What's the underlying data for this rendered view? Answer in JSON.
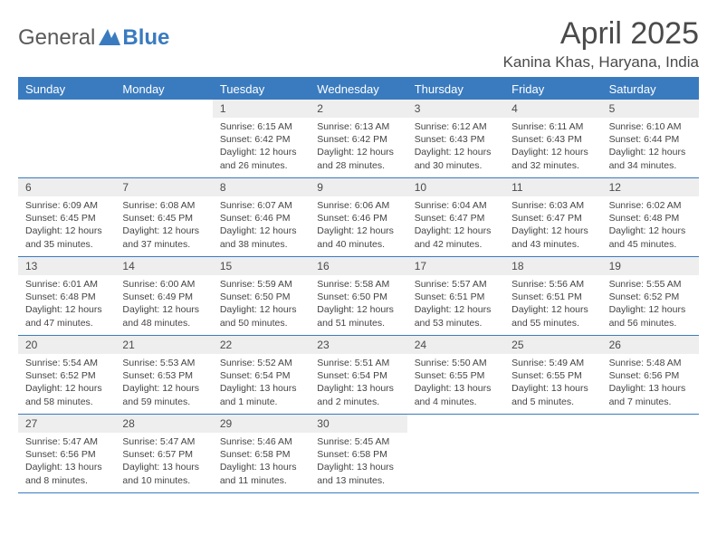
{
  "logo": {
    "general": "General",
    "blue": "Blue"
  },
  "title": "April 2025",
  "location": "Kanina Khas, Haryana, India",
  "header_bg": "#3a7bbf",
  "header_fg": "#ffffff",
  "daynum_bg": "#eeeeee",
  "text_color": "#444444",
  "border_color": "#3a7bbf",
  "day_names": [
    "Sunday",
    "Monday",
    "Tuesday",
    "Wednesday",
    "Thursday",
    "Friday",
    "Saturday"
  ],
  "weeks": [
    [
      null,
      null,
      {
        "n": "1",
        "sr": "6:15 AM",
        "ss": "6:42 PM",
        "dl": "12 hours and 26 minutes."
      },
      {
        "n": "2",
        "sr": "6:13 AM",
        "ss": "6:42 PM",
        "dl": "12 hours and 28 minutes."
      },
      {
        "n": "3",
        "sr": "6:12 AM",
        "ss": "6:43 PM",
        "dl": "12 hours and 30 minutes."
      },
      {
        "n": "4",
        "sr": "6:11 AM",
        "ss": "6:43 PM",
        "dl": "12 hours and 32 minutes."
      },
      {
        "n": "5",
        "sr": "6:10 AM",
        "ss": "6:44 PM",
        "dl": "12 hours and 34 minutes."
      }
    ],
    [
      {
        "n": "6",
        "sr": "6:09 AM",
        "ss": "6:45 PM",
        "dl": "12 hours and 35 minutes."
      },
      {
        "n": "7",
        "sr": "6:08 AM",
        "ss": "6:45 PM",
        "dl": "12 hours and 37 minutes."
      },
      {
        "n": "8",
        "sr": "6:07 AM",
        "ss": "6:46 PM",
        "dl": "12 hours and 38 minutes."
      },
      {
        "n": "9",
        "sr": "6:06 AM",
        "ss": "6:46 PM",
        "dl": "12 hours and 40 minutes."
      },
      {
        "n": "10",
        "sr": "6:04 AM",
        "ss": "6:47 PM",
        "dl": "12 hours and 42 minutes."
      },
      {
        "n": "11",
        "sr": "6:03 AM",
        "ss": "6:47 PM",
        "dl": "12 hours and 43 minutes."
      },
      {
        "n": "12",
        "sr": "6:02 AM",
        "ss": "6:48 PM",
        "dl": "12 hours and 45 minutes."
      }
    ],
    [
      {
        "n": "13",
        "sr": "6:01 AM",
        "ss": "6:48 PM",
        "dl": "12 hours and 47 minutes."
      },
      {
        "n": "14",
        "sr": "6:00 AM",
        "ss": "6:49 PM",
        "dl": "12 hours and 48 minutes."
      },
      {
        "n": "15",
        "sr": "5:59 AM",
        "ss": "6:50 PM",
        "dl": "12 hours and 50 minutes."
      },
      {
        "n": "16",
        "sr": "5:58 AM",
        "ss": "6:50 PM",
        "dl": "12 hours and 51 minutes."
      },
      {
        "n": "17",
        "sr": "5:57 AM",
        "ss": "6:51 PM",
        "dl": "12 hours and 53 minutes."
      },
      {
        "n": "18",
        "sr": "5:56 AM",
        "ss": "6:51 PM",
        "dl": "12 hours and 55 minutes."
      },
      {
        "n": "19",
        "sr": "5:55 AM",
        "ss": "6:52 PM",
        "dl": "12 hours and 56 minutes."
      }
    ],
    [
      {
        "n": "20",
        "sr": "5:54 AM",
        "ss": "6:52 PM",
        "dl": "12 hours and 58 minutes."
      },
      {
        "n": "21",
        "sr": "5:53 AM",
        "ss": "6:53 PM",
        "dl": "12 hours and 59 minutes."
      },
      {
        "n": "22",
        "sr": "5:52 AM",
        "ss": "6:54 PM",
        "dl": "13 hours and 1 minute."
      },
      {
        "n": "23",
        "sr": "5:51 AM",
        "ss": "6:54 PM",
        "dl": "13 hours and 2 minutes."
      },
      {
        "n": "24",
        "sr": "5:50 AM",
        "ss": "6:55 PM",
        "dl": "13 hours and 4 minutes."
      },
      {
        "n": "25",
        "sr": "5:49 AM",
        "ss": "6:55 PM",
        "dl": "13 hours and 5 minutes."
      },
      {
        "n": "26",
        "sr": "5:48 AM",
        "ss": "6:56 PM",
        "dl": "13 hours and 7 minutes."
      }
    ],
    [
      {
        "n": "27",
        "sr": "5:47 AM",
        "ss": "6:56 PM",
        "dl": "13 hours and 8 minutes."
      },
      {
        "n": "28",
        "sr": "5:47 AM",
        "ss": "6:57 PM",
        "dl": "13 hours and 10 minutes."
      },
      {
        "n": "29",
        "sr": "5:46 AM",
        "ss": "6:58 PM",
        "dl": "13 hours and 11 minutes."
      },
      {
        "n": "30",
        "sr": "5:45 AM",
        "ss": "6:58 PM",
        "dl": "13 hours and 13 minutes."
      },
      null,
      null,
      null
    ]
  ],
  "labels": {
    "sunrise": "Sunrise: ",
    "sunset": "Sunset: ",
    "daylight": "Daylight: "
  }
}
